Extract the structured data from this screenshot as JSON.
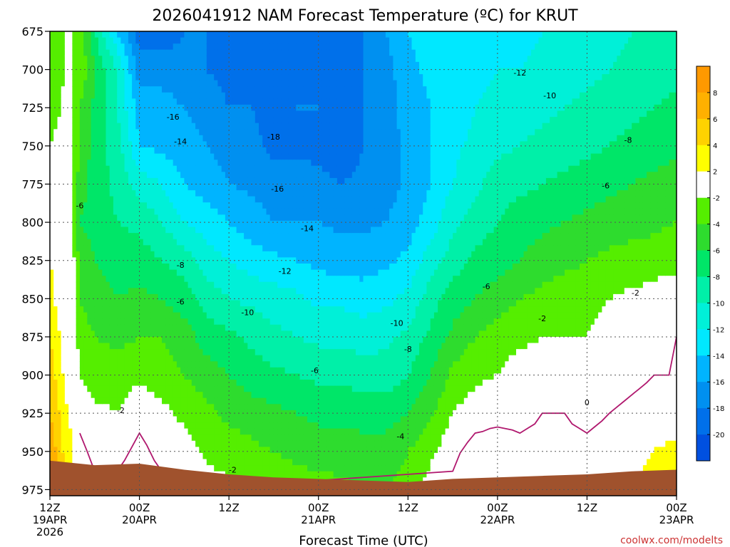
{
  "title": "2026041912 NAM Forecast Temperature (ºC) for KRUT",
  "credit": "coolwx.com/modelts",
  "colors": {
    "credit": "#cc3333",
    "ground": "#a0522d",
    "freezing_line": "#b0186e"
  },
  "chart_data": {
    "type": "contour",
    "title": "2026041912 NAM Forecast Temperature (ºC) for KRUT",
    "xlabel": "Forecast Time (UTC)",
    "ylabel": "",
    "x_ticks": [
      {
        "hour": 0,
        "line1": "12Z",
        "line2": "19APR",
        "line3": "2026"
      },
      {
        "hour": 12,
        "line1": "00Z",
        "line2": "20APR",
        "line3": ""
      },
      {
        "hour": 24,
        "line1": "12Z",
        "line2": "",
        "line3": ""
      },
      {
        "hour": 36,
        "line1": "00Z",
        "line2": "21APR",
        "line3": ""
      },
      {
        "hour": 48,
        "line1": "12Z",
        "line2": "",
        "line3": ""
      },
      {
        "hour": 60,
        "line1": "00Z",
        "line2": "22APR",
        "line3": ""
      },
      {
        "hour": 72,
        "line1": "12Z",
        "line2": "",
        "line3": ""
      },
      {
        "hour": 84,
        "line1": "00Z",
        "line2": "23APR",
        "line3": ""
      }
    ],
    "xlim": [
      0,
      84
    ],
    "y_ticks": [
      675,
      700,
      725,
      750,
      775,
      800,
      825,
      850,
      875,
      900,
      925,
      950,
      975
    ],
    "ylim": [
      675,
      979
    ],
    "colorbar": {
      "labels": [
        8,
        6,
        4,
        2,
        -2,
        -4,
        -6,
        -8,
        -10,
        -12,
        -14,
        -16,
        -18,
        -20
      ],
      "bands": [
        {
          "min": 8,
          "max": 10,
          "color": "#ff9900"
        },
        {
          "min": 6,
          "max": 8,
          "color": "#ffb000"
        },
        {
          "min": 4,
          "max": 6,
          "color": "#ffd200"
        },
        {
          "min": 2,
          "max": 4,
          "color": "#ffff00"
        },
        {
          "min": -2,
          "max": 2,
          "color": "#ffffff"
        },
        {
          "min": -4,
          "max": -2,
          "color": "#55ee00"
        },
        {
          "min": -6,
          "max": -4,
          "color": "#2edc2e"
        },
        {
          "min": -8,
          "max": -6,
          "color": "#00e668"
        },
        {
          "min": -10,
          "max": -8,
          "color": "#00f0a8"
        },
        {
          "min": -12,
          "max": -10,
          "color": "#00f0d8"
        },
        {
          "min": -14,
          "max": -12,
          "color": "#00e8ff"
        },
        {
          "min": -16,
          "max": -14,
          "color": "#00b4ff"
        },
        {
          "min": -18,
          "max": -16,
          "color": "#0090f0"
        },
        {
          "min": -20,
          "max": -18,
          "color": "#0070ea"
        },
        {
          "min": -22,
          "max": -20,
          "color": "#0050e0"
        }
      ]
    },
    "profiles": [
      {
        "hour": 0,
        "temps": [
          -4,
          -4,
          -3,
          -2,
          -1,
          1,
          2,
          3,
          4,
          5,
          6,
          8,
          9
        ]
      },
      {
        "hour": 1,
        "temps": [
          -2.5,
          -3,
          -2.5,
          -1.5,
          -0.5,
          0.5,
          1,
          1.5,
          2.5,
          3.5,
          4.5,
          5.5,
          6.5
        ]
      },
      {
        "hour": 2,
        "temps": [
          -2,
          -2,
          -1.5,
          -1,
          -0.5,
          -0.5,
          0,
          0.5,
          0.8,
          1.5,
          2.5,
          3.5,
          4.5
        ]
      },
      {
        "hour": 3,
        "temps": [
          -2,
          -2,
          -2,
          -2,
          -2,
          -2,
          -1,
          -1,
          0,
          0.5,
          1.5,
          2,
          3
        ]
      },
      {
        "hour": 4,
        "temps": [
          -3,
          -3,
          -4,
          -4,
          -5,
          -6,
          -4.5,
          -4,
          -3,
          -2,
          -0.5,
          0.5,
          1.5
        ]
      },
      {
        "hour": 5,
        "temps": [
          -5,
          -4,
          -5,
          -5.5,
          -6,
          -6.5,
          -5,
          -4.5,
          -3.5,
          -2.5,
          -1,
          0,
          1
        ]
      },
      {
        "hour": 6,
        "temps": [
          -8,
          -6,
          -6.5,
          -7,
          -7,
          -7,
          -6,
          -5,
          -4,
          -3,
          -1.5,
          -0.5,
          0.5
        ]
      },
      {
        "hour": 9,
        "temps": [
          -14,
          -10,
          -10,
          -9,
          -8.5,
          -8,
          -7,
          -6,
          -4.5,
          -3,
          -2,
          -0.5,
          0.5
        ]
      },
      {
        "hour": 12,
        "temps": [
          -19,
          -17,
          -15,
          -14,
          -11,
          -8.5,
          -7,
          -5.5,
          -4,
          -2.5,
          -0.5,
          0.5,
          0.8
        ]
      },
      {
        "hour": 15,
        "temps": [
          -19,
          -17,
          -15,
          -14.5,
          -12,
          -10,
          -8,
          -6,
          -4,
          -3,
          -1.5,
          -0.5,
          0.5
        ]
      },
      {
        "hour": 18,
        "temps": [
          -18,
          -17.5,
          -16,
          -15,
          -14,
          -12,
          -9,
          -7,
          -5,
          -4,
          -2.5,
          -1,
          0
        ]
      },
      {
        "hour": 21,
        "temps": [
          -18,
          -18,
          -17,
          -16,
          -15,
          -13,
          -11,
          -9,
          -7,
          -5,
          -3.5,
          -2.5,
          -1
        ]
      },
      {
        "hour": 24,
        "temps": [
          -19,
          -18.5,
          -18,
          -17,
          -16,
          -14,
          -12,
          -10,
          -7.5,
          -6,
          -4.5,
          -3,
          -1.5
        ]
      },
      {
        "hour": 27,
        "temps": [
          -19,
          -19,
          -18,
          -17.5,
          -16.5,
          -15,
          -13,
          -10.5,
          -8.5,
          -7,
          -5,
          -3.5,
          -2
        ]
      },
      {
        "hour": 30,
        "temps": [
          -20,
          -19,
          -18.5,
          -18.5,
          -17,
          -16,
          -13.5,
          -11,
          -9.5,
          -7.5,
          -5.5,
          -4,
          -2.5
        ]
      },
      {
        "hour": 33,
        "temps": [
          -20,
          -19,
          -18,
          -18.5,
          -17,
          -16,
          -14,
          -11.5,
          -10,
          -8,
          -6,
          -4.5,
          -3
        ]
      },
      {
        "hour": 36,
        "temps": [
          -20,
          -18.5,
          -18,
          -18.5,
          -17.5,
          -16,
          -14.5,
          -12.5,
          -10.5,
          -8.5,
          -6.5,
          -5,
          -3
        ]
      },
      {
        "hour": 39,
        "temps": [
          -19,
          -19,
          -19,
          -19.5,
          -18,
          -16.5,
          -15,
          -12.5,
          -10.5,
          -8.5,
          -6.5,
          -5,
          -3.5
        ]
      },
      {
        "hour": 42,
        "temps": [
          -18,
          -18,
          -18,
          -18,
          -17.5,
          -16.5,
          -15,
          -13,
          -11,
          -9,
          -7,
          -5,
          -4
        ]
      },
      {
        "hour": 45,
        "temps": [
          -16,
          -17,
          -17,
          -17,
          -17,
          -16,
          -14.5,
          -12.5,
          -10.5,
          -9,
          -7,
          -5,
          -4
        ]
      },
      {
        "hour": 48,
        "temps": [
          -14,
          -14.5,
          -15,
          -15.5,
          -15.5,
          -15,
          -13.5,
          -11.5,
          -9.5,
          -8,
          -6,
          -4,
          -3.5
        ]
      },
      {
        "hour": 51,
        "temps": [
          -13,
          -13.5,
          -14,
          -14,
          -14,
          -13,
          -11,
          -9,
          -7.5,
          -6,
          -4.5,
          -2.5,
          -1
        ]
      },
      {
        "hour": 54,
        "temps": [
          -12.5,
          -13,
          -13,
          -12.5,
          -12,
          -10.5,
          -9,
          -7,
          -5.5,
          -3.5,
          -2,
          -0.5,
          0.5
        ]
      },
      {
        "hour": 57,
        "temps": [
          -12.5,
          -12.5,
          -12,
          -11.5,
          -10.5,
          -9,
          -7.5,
          -6,
          -4,
          -2.5,
          -1,
          1,
          1.5
        ]
      },
      {
        "hour": 60,
        "temps": [
          -12.5,
          -12,
          -11.5,
          -10.5,
          -9,
          -8,
          -7,
          -5,
          -3,
          -2,
          -0.5,
          1,
          1.5
        ]
      },
      {
        "hour": 63,
        "temps": [
          -12.5,
          -12,
          -11,
          -10,
          -8.5,
          -7,
          -6,
          -4,
          -2.5,
          -1,
          -0.5,
          0.5,
          1
        ]
      },
      {
        "hour": 66,
        "temps": [
          -12,
          -11.5,
          -10.5,
          -9.5,
          -8,
          -6.5,
          -5,
          -3.5,
          -2,
          -1,
          0,
          0.5,
          1
        ]
      },
      {
        "hour": 69,
        "temps": [
          -11.5,
          -11,
          -10,
          -9,
          -7.5,
          -6,
          -4.5,
          -3,
          -2,
          -1,
          0,
          0.5,
          1
        ]
      },
      {
        "hour": 72,
        "temps": [
          -11,
          -10.5,
          -9.5,
          -8.5,
          -7,
          -5.5,
          -4,
          -3,
          -2,
          -1,
          -0.5,
          0.5,
          1.5
        ]
      },
      {
        "hour": 75,
        "temps": [
          -10.5,
          -10,
          -9,
          -8,
          -6.5,
          -5,
          -3.5,
          -2,
          -1,
          -1,
          0,
          1,
          1.5
        ]
      },
      {
        "hour": 78,
        "temps": [
          -10,
          -9.5,
          -8.5,
          -7.5,
          -6,
          -4.5,
          -3.5,
          -1.5,
          -0.5,
          -0.5,
          0.5,
          1.5,
          2
        ]
      },
      {
        "hour": 81,
        "temps": [
          -9.5,
          -9,
          -8,
          -7,
          -5.5,
          -4.5,
          -3,
          -1,
          -0.5,
          0,
          1,
          2,
          2.5
        ]
      },
      {
        "hour": 84,
        "temps": [
          -9,
          -8.5,
          -7.5,
          -6.5,
          -5,
          -4,
          -2.5,
          -1,
          0,
          0,
          1,
          2.5,
          3
        ]
      }
    ],
    "ground": [
      {
        "hour": 0,
        "pres": 956
      },
      {
        "hour": 6,
        "pres": 959
      },
      {
        "hour": 12,
        "pres": 958
      },
      {
        "hour": 18,
        "pres": 962
      },
      {
        "hour": 24,
        "pres": 965
      },
      {
        "hour": 30,
        "pres": 967
      },
      {
        "hour": 36,
        "pres": 968
      },
      {
        "hour": 42,
        "pres": 969
      },
      {
        "hour": 48,
        "pres": 970
      },
      {
        "hour": 54,
        "pres": 968
      },
      {
        "hour": 60,
        "pres": 967
      },
      {
        "hour": 66,
        "pres": 966
      },
      {
        "hour": 72,
        "pres": 965
      },
      {
        "hour": 78,
        "pres": 963
      },
      {
        "hour": 84,
        "pres": 962
      }
    ],
    "contour_labels": [
      {
        "text": "-18",
        "hour": 30,
        "pres": 744
      },
      {
        "text": "-16",
        "hour": 16.5,
        "pres": 731
      },
      {
        "text": "-16",
        "hour": 30.5,
        "pres": 778
      },
      {
        "text": "-14",
        "hour": 17.5,
        "pres": 747
      },
      {
        "text": "-14",
        "hour": 34.5,
        "pres": 804
      },
      {
        "text": "-12",
        "hour": 31.5,
        "pres": 832
      },
      {
        "text": "-12",
        "hour": 63,
        "pres": 702
      },
      {
        "text": "-10",
        "hour": 26.5,
        "pres": 859
      },
      {
        "text": "-10",
        "hour": 46.5,
        "pres": 866
      },
      {
        "text": "-10",
        "hour": 67,
        "pres": 717
      },
      {
        "text": "-8",
        "hour": 17.5,
        "pres": 828
      },
      {
        "text": "-8",
        "hour": 48,
        "pres": 883
      },
      {
        "text": "-8",
        "hour": 77.5,
        "pres": 746
      },
      {
        "text": "-6",
        "hour": 4,
        "pres": 789
      },
      {
        "text": "-6",
        "hour": 17.5,
        "pres": 852
      },
      {
        "text": "-6",
        "hour": 35.5,
        "pres": 897
      },
      {
        "text": "-6",
        "hour": 58.5,
        "pres": 842
      },
      {
        "text": "-6",
        "hour": 74.5,
        "pres": 776
      },
      {
        "text": "-4",
        "hour": 47,
        "pres": 940
      },
      {
        "text": "-2",
        "hour": 9.5,
        "pres": 923
      },
      {
        "text": "-2",
        "hour": 24.5,
        "pres": 962
      },
      {
        "text": "-2",
        "hour": 66,
        "pres": 863
      },
      {
        "text": "-2",
        "hour": 78.5,
        "pres": 846
      },
      {
        "text": "0",
        "hour": 72,
        "pres": 918
      }
    ]
  }
}
